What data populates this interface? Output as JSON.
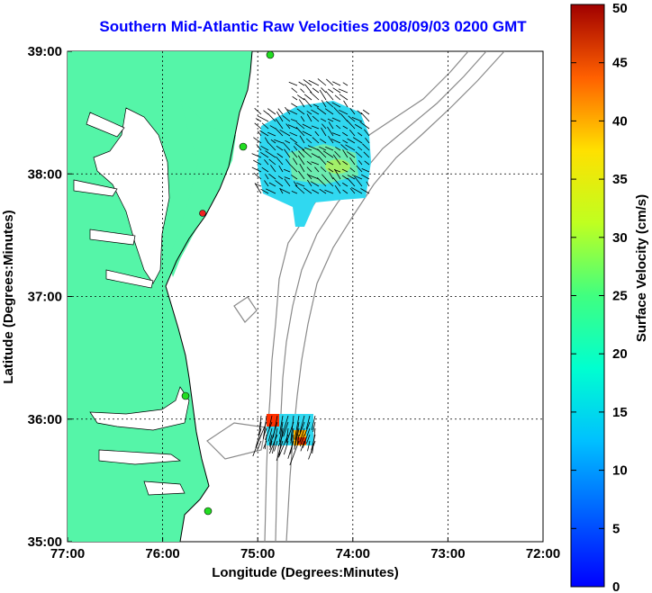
{
  "title": "Southern Mid-Atlantic Raw Velocities 2008/09/03 0200 GMT",
  "map": {
    "xlabel": "Longitude (Degrees:Minutes)",
    "ylabel": "Latitude (Degrees:Minutes)",
    "x_ticks": [
      "77:00",
      "76:00",
      "75:00",
      "74:00",
      "73:00",
      "72:00"
    ],
    "y_ticks": [
      "39:00",
      "38:00",
      "37:00",
      "36:00",
      "35:00"
    ],
    "lon_range": [
      -77,
      -72
    ],
    "lat_range": [
      35,
      39
    ],
    "grid": "dotted",
    "colors": {
      "land": "#55f5a8",
      "ocean": "#ffffff",
      "contour": "#8a8a8a",
      "arrows": "#000000"
    }
  },
  "colorbar": {
    "label": "Surface Velocity (cm/s)",
    "ticks": [
      "50",
      "45",
      "40",
      "35",
      "30",
      "25",
      "20",
      "15",
      "10",
      "5",
      "0"
    ],
    "range": [
      0,
      50
    ],
    "colormap": "jet"
  },
  "stations": {
    "colors": {
      "active": "#22dd22",
      "inactive": "#ee2222"
    }
  }
}
